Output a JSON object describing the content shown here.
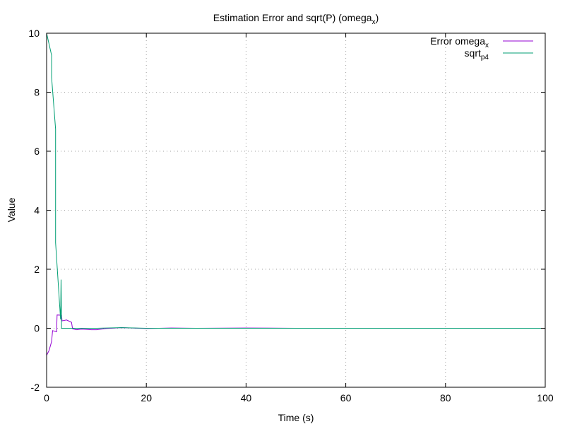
{
  "chart_data": {
    "type": "line",
    "title": {
      "main": "Estimation Error and sqrt(P) (omega",
      "sub": "x",
      "end": ")"
    },
    "xlabel": "Time (s)",
    "ylabel": "Value",
    "xlim": [
      0,
      100
    ],
    "ylim": [
      -2,
      10
    ],
    "xticks": [
      0,
      20,
      40,
      60,
      80,
      100
    ],
    "yticks": [
      -2,
      0,
      2,
      4,
      6,
      8,
      10
    ],
    "grid": true,
    "legend_position": "top-right",
    "series": [
      {
        "name": "Error omega",
        "name_sub": "x",
        "color": "#9400d3",
        "points": [
          [
            0,
            -0.92
          ],
          [
            0.5,
            -0.75
          ],
          [
            1,
            -0.45
          ],
          [
            1.2,
            -0.08
          ],
          [
            2,
            -0.12
          ],
          [
            2.1,
            0.45
          ],
          [
            3,
            0.44
          ],
          [
            3.1,
            0.25
          ],
          [
            4,
            0.28
          ],
          [
            5,
            0.2
          ],
          [
            5.2,
            -0.02
          ],
          [
            6,
            -0.05
          ],
          [
            7,
            -0.03
          ],
          [
            8,
            -0.04
          ],
          [
            9,
            -0.05
          ],
          [
            10,
            -0.05
          ],
          [
            11,
            -0.03
          ],
          [
            12,
            -0.01
          ],
          [
            13,
            0.0
          ],
          [
            15,
            0.02
          ],
          [
            17,
            0.01
          ],
          [
            20,
            -0.01
          ],
          [
            25,
            0.01
          ],
          [
            30,
            0.0
          ],
          [
            40,
            0.01
          ],
          [
            50,
            0.0
          ],
          [
            60,
            0.0
          ],
          [
            70,
            0.0
          ],
          [
            80,
            0.0
          ],
          [
            90,
            0.0
          ],
          [
            100,
            0.0
          ]
        ]
      },
      {
        "name": "sqrt",
        "name_sub": "p4",
        "color": "#009e73",
        "points": [
          [
            0,
            10.0
          ],
          [
            1,
            9.25
          ],
          [
            1,
            8.5
          ],
          [
            1.8,
            6.75
          ],
          [
            1.8,
            2.9
          ],
          [
            2.8,
            0.3
          ],
          [
            2.9,
            1.65
          ],
          [
            3.0,
            0.0
          ],
          [
            5,
            0.0
          ],
          [
            10,
            0.0
          ],
          [
            15,
            0.02
          ],
          [
            20,
            0.0
          ],
          [
            30,
            0.0
          ],
          [
            40,
            0.0
          ],
          [
            50,
            0.0
          ],
          [
            60,
            0.0
          ],
          [
            70,
            0.0
          ],
          [
            80,
            0.0
          ],
          [
            90,
            0.0
          ],
          [
            100,
            0.0
          ]
        ]
      }
    ]
  }
}
